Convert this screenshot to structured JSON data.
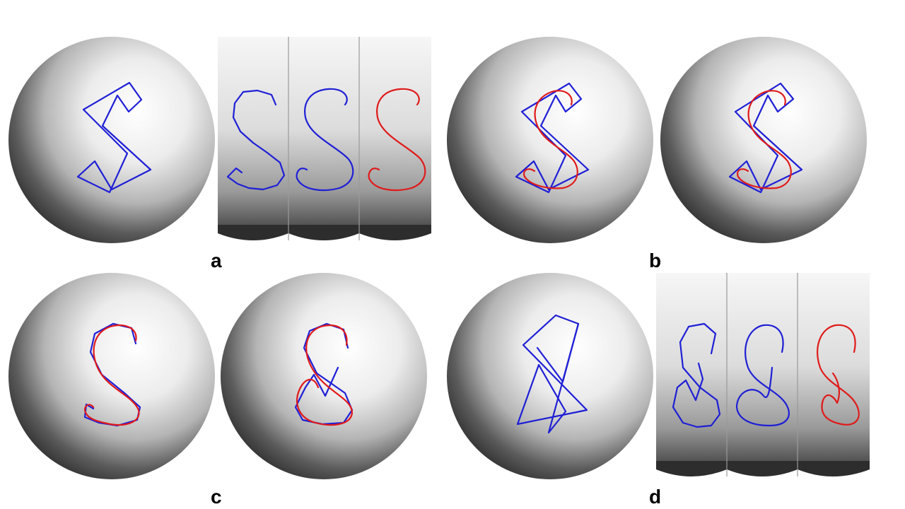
{
  "figure": {
    "colors": {
      "control_polygon": "#1f1fd6",
      "target_curve": "#e01a1a",
      "sphere_highlight": "#ffffff",
      "sphere_shadow": "#2a2a2a"
    },
    "panels": [
      {
        "id": "a",
        "label": "a"
      },
      {
        "id": "b",
        "label": "b"
      },
      {
        "id": "c",
        "label": "c"
      },
      {
        "id": "d",
        "label": "d"
      }
    ]
  }
}
